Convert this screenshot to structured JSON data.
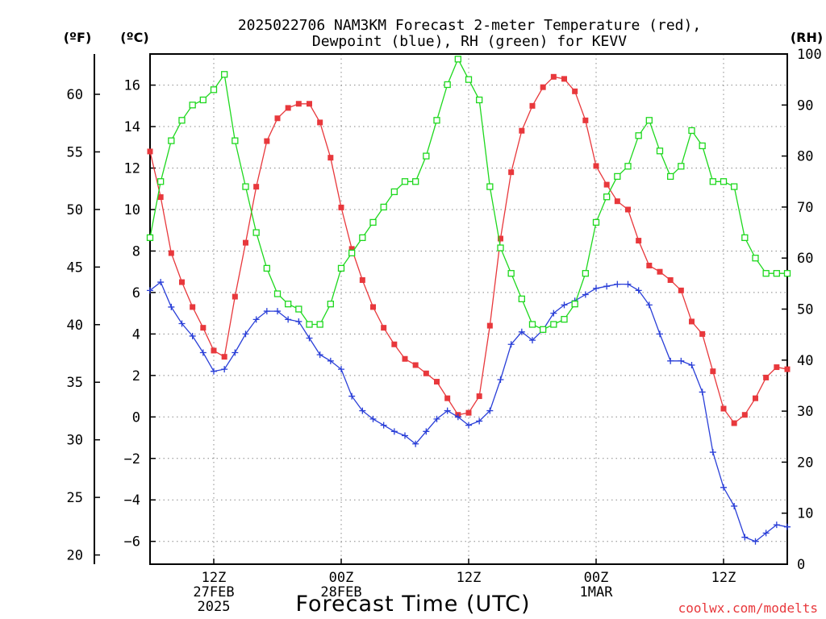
{
  "chart_data": {
    "type": "line",
    "title_lines": [
      "2025022706 NAM3KM Forecast 2-meter Temperature (red),",
      "Dewpoint (blue), RH (green) for KEVV"
    ],
    "xlabel": "Forecast Time (UTC)",
    "axes": {
      "fahrenheit": {
        "unit_label": "(ºF)",
        "range": [
          19.2,
          63.5
        ],
        "ticks": [
          20,
          25,
          30,
          35,
          40,
          45,
          50,
          55,
          60
        ]
      },
      "celsius": {
        "unit_label": "(ºC)",
        "range": [
          -7.1,
          17.5
        ],
        "ticks": [
          -6,
          -4,
          -2,
          0,
          2,
          4,
          6,
          8,
          10,
          12,
          14,
          16
        ]
      },
      "rh": {
        "unit_label": "(RH)",
        "range": [
          0,
          100
        ],
        "ticks": [
          0,
          10,
          20,
          30,
          40,
          50,
          60,
          70,
          80,
          90,
          100
        ]
      },
      "time": {
        "range_hours": [
          7,
          67
        ],
        "ticks": [
          {
            "hour": 13,
            "lines": [
              "12Z",
              "27FEB",
              "2025"
            ]
          },
          {
            "hour": 25,
            "lines": [
              "00Z",
              "28FEB"
            ]
          },
          {
            "hour": 37,
            "lines": [
              "12Z"
            ]
          },
          {
            "hour": 49,
            "lines": [
              "00Z",
              "1MAR"
            ]
          },
          {
            "hour": 61,
            "lines": [
              "12Z"
            ]
          }
        ]
      }
    },
    "grid": true,
    "forecast_hours": [
      7,
      8,
      9,
      10,
      11,
      12,
      13,
      14,
      15,
      16,
      17,
      18,
      19,
      20,
      21,
      22,
      23,
      24,
      25,
      26,
      27,
      28,
      29,
      30,
      31,
      32,
      33,
      34,
      35,
      36,
      37,
      38,
      39,
      40,
      41,
      42,
      43,
      44,
      45,
      46,
      47,
      48,
      49,
      50,
      51,
      52,
      53,
      54,
      55,
      56,
      57,
      58,
      59,
      60,
      61,
      62,
      63,
      64,
      65,
      66,
      67
    ],
    "series": [
      {
        "axis": "celsius",
        "color": "#e8383c",
        "marker": "filled-square",
        "values": [
          12.8,
          10.6,
          7.9,
          6.5,
          5.3,
          4.3,
          3.2,
          2.9,
          5.8,
          8.4,
          11.1,
          13.3,
          14.4,
          14.9,
          15.1,
          15.1,
          14.2,
          12.5,
          10.1,
          8.1,
          6.6,
          5.3,
          4.3,
          3.5,
          2.8,
          2.5,
          2.1,
          1.7,
          0.9,
          0.1,
          0.2,
          1.0,
          4.4,
          8.6,
          11.8,
          13.8,
          15.0,
          15.9,
          16.4,
          16.3,
          15.7,
          14.3,
          12.1,
          11.2,
          10.4,
          10.0,
          8.5,
          7.3,
          7.0,
          6.6,
          6.1,
          4.6,
          4.0,
          2.2,
          0.4,
          -0.3,
          0.1,
          0.9,
          1.9,
          2.4,
          2.3
        ]
      },
      {
        "axis": "celsius",
        "color": "#2a3fd8",
        "marker": "plus",
        "values": [
          6.1,
          6.5,
          5.3,
          4.5,
          3.9,
          3.1,
          2.2,
          2.3,
          3.1,
          4.0,
          4.7,
          5.1,
          5.1,
          4.7,
          4.6,
          3.8,
          3.0,
          2.7,
          2.3,
          1.0,
          0.3,
          -0.1,
          -0.4,
          -0.7,
          -0.9,
          -1.3,
          -0.7,
          -0.1,
          0.3,
          0.0,
          -0.4,
          -0.2,
          0.3,
          1.8,
          3.5,
          4.1,
          3.7,
          4.2,
          5.0,
          5.4,
          5.6,
          5.9,
          6.2,
          6.3,
          6.4,
          6.4,
          6.1,
          5.4,
          4.0,
          2.7,
          2.7,
          2.5,
          1.2,
          -1.7,
          -3.4,
          -4.3,
          -5.8,
          -6.0,
          -5.6,
          -5.2,
          -5.3
        ]
      },
      {
        "axis": "rh",
        "color": "#1ed81e",
        "marker": "open-square",
        "values": [
          64,
          75,
          83,
          87,
          90,
          91,
          93,
          96,
          83,
          74,
          65,
          58,
          53,
          51,
          50,
          47,
          47,
          51,
          58,
          61,
          64,
          67,
          70,
          73,
          75,
          75,
          80,
          87,
          94,
          99,
          95,
          91,
          74,
          62,
          57,
          52,
          47,
          46,
          47,
          48,
          51,
          57,
          67,
          72,
          76,
          78,
          84,
          87,
          81,
          76,
          78,
          85,
          82,
          75,
          75,
          74,
          64,
          60,
          57,
          57,
          57
        ]
      }
    ],
    "credit": "coolwx.com/modelts"
  }
}
